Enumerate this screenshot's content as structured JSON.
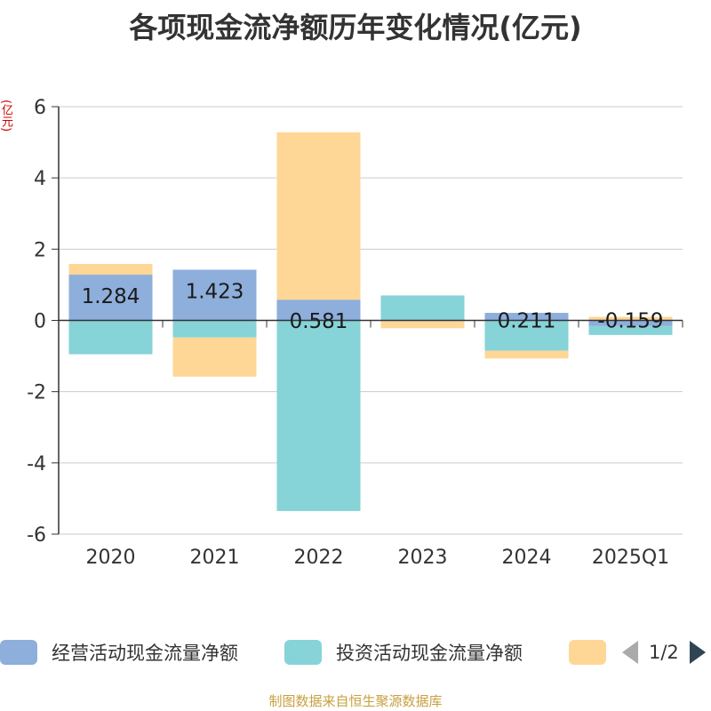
{
  "chart_data": {
    "type": "bar",
    "stacked": true,
    "title": "各项现金流净额历年变化情况(亿元)",
    "ylabel": "(亿元)",
    "categories": [
      "2020",
      "2021",
      "2022",
      "2023",
      "2024",
      "2025Q1"
    ],
    "ylim": [
      -6,
      6
    ],
    "yticks": [
      6,
      4,
      2,
      0,
      -2,
      -4,
      -6
    ],
    "grid": true,
    "legend_position": "bottom",
    "series": [
      {
        "name": "经营活动现金流量净额",
        "color": "#8eaedb",
        "values": [
          1.284,
          1.423,
          0.581,
          -0.02,
          0.211,
          -0.159
        ]
      },
      {
        "name": "投资活动现金流量净额",
        "color": "#86d3d8",
        "values": [
          -0.95,
          -0.48,
          -5.35,
          0.7,
          -0.85,
          -0.25
        ]
      },
      {
        "name": "",
        "color": "#fed796",
        "values": [
          0.3,
          -1.1,
          4.7,
          -0.2,
          -0.22,
          0.1
        ]
      }
    ],
    "data_labels": [
      "1.284",
      "1.423",
      "0.581",
      "",
      "0.211",
      "-0.159"
    ]
  },
  "legend_pager": {
    "page": "1/2"
  },
  "source": "制图数据来自恒生聚源数据库"
}
